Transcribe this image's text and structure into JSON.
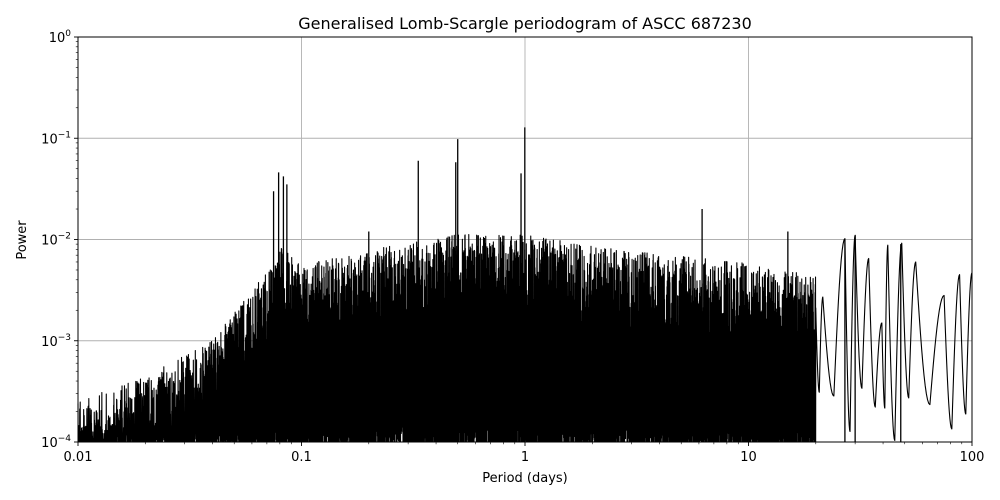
{
  "chart_data": {
    "type": "line",
    "title": "Generalised Lomb-Scargle periodogram of ASCC 687230",
    "xlabel": "Period (days)",
    "ylabel": "Power",
    "xscale": "log",
    "yscale": "log",
    "xlim": [
      0.01,
      100
    ],
    "ylim": [
      0.0001,
      1
    ],
    "grid": true,
    "line_color": "#000000",
    "x_ticks": [
      {
        "value": 0.01,
        "label": "0.01"
      },
      {
        "value": 0.1,
        "label": "0.1"
      },
      {
        "value": 1,
        "label": "1"
      },
      {
        "value": 10,
        "label": "10"
      },
      {
        "value": 100,
        "label": "100"
      }
    ],
    "y_ticks": [
      {
        "value": 0.0001,
        "base": "10",
        "exp": "−4"
      },
      {
        "value": 0.001,
        "base": "10",
        "exp": "−3"
      },
      {
        "value": 0.01,
        "base": "10",
        "exp": "−2"
      },
      {
        "value": 0.1,
        "base": "10",
        "exp": "−1"
      },
      {
        "value": 1,
        "base": "10",
        "exp": "0"
      }
    ],
    "peaks": [
      {
        "period": 0.079,
        "power": 0.046
      },
      {
        "period": 0.083,
        "power": 0.042
      },
      {
        "period": 0.075,
        "power": 0.03
      },
      {
        "period": 0.086,
        "power": 0.035
      },
      {
        "period": 0.333,
        "power": 0.06
      },
      {
        "period": 0.5,
        "power": 0.098
      },
      {
        "period": 0.49,
        "power": 0.058
      },
      {
        "period": 0.998,
        "power": 0.128
      },
      {
        "period": 0.96,
        "power": 0.045
      },
      {
        "period": 0.2,
        "power": 0.012
      },
      {
        "period": 6.2,
        "power": 0.02
      },
      {
        "period": 15.0,
        "power": 0.012
      },
      {
        "period": 27.0,
        "power": 0.01
      },
      {
        "period": 30.0,
        "power": 0.011
      },
      {
        "period": 48.0,
        "power": 0.009
      }
    ],
    "smooth_regime": {
      "x_from": 20,
      "x_to": 100,
      "oscillations": [
        {
          "period": 21.5,
          "power": 0.0027
        },
        {
          "period": 27.0,
          "power": 0.0102
        },
        {
          "period": 30.0,
          "power": 0.011
        },
        {
          "period": 34.5,
          "power": 0.0065
        },
        {
          "period": 39.5,
          "power": 0.0015
        },
        {
          "period": 42.0,
          "power": 0.0088
        },
        {
          "period": 48.5,
          "power": 0.0092
        },
        {
          "period": 56.0,
          "power": 0.006
        },
        {
          "period": 75.0,
          "power": 0.0028
        },
        {
          "period": 88.0,
          "power": 0.0045
        },
        {
          "period": 100.0,
          "power": 0.0047
        }
      ]
    }
  }
}
